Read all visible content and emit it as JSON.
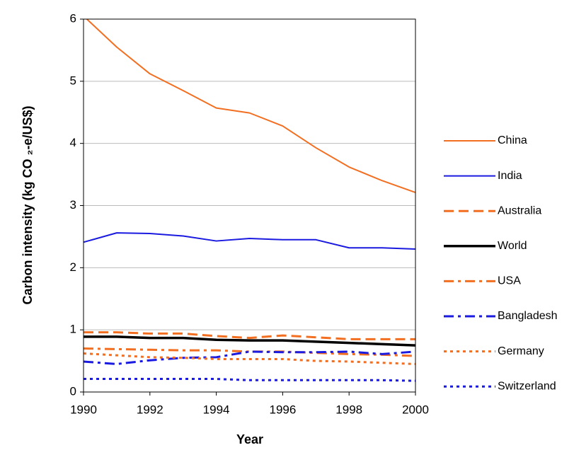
{
  "chart_data": {
    "type": "line",
    "xlabel": "Year",
    "ylabel": "Carbon intensity (kg CO ₂-e/US$)",
    "x": [
      1990,
      1991,
      1992,
      1993,
      1994,
      1995,
      1996,
      1997,
      1998,
      1999,
      2000
    ],
    "xlim": [
      1990,
      2000
    ],
    "xticks": [
      1990,
      1992,
      1994,
      1996,
      1998,
      2000
    ],
    "ylim": [
      0,
      6
    ],
    "yticks": [
      0,
      1,
      2,
      3,
      4,
      5,
      6
    ],
    "grid": true,
    "legend": "right",
    "series": [
      {
        "name": "China",
        "color": "#f26f21",
        "dash": "solid",
        "width": 2,
        "values": [
          6.05,
          5.55,
          5.12,
          4.85,
          4.57,
          4.49,
          4.28,
          3.93,
          3.62,
          3.4,
          3.21
        ]
      },
      {
        "name": "India",
        "color": "#1a1ae0",
        "dash": "solid",
        "width": 2,
        "values": [
          2.41,
          2.56,
          2.55,
          2.51,
          2.43,
          2.47,
          2.45,
          2.45,
          2.32,
          2.32,
          2.3
        ]
      },
      {
        "name": "Australia",
        "color": "#f26f21",
        "dash": "dash",
        "width": 3,
        "values": [
          0.96,
          0.96,
          0.94,
          0.94,
          0.9,
          0.87,
          0.91,
          0.88,
          0.85,
          0.85,
          0.85
        ]
      },
      {
        "name": "World",
        "color": "#000000",
        "dash": "solid",
        "width": 3.5,
        "values": [
          0.89,
          0.89,
          0.87,
          0.87,
          0.84,
          0.83,
          0.83,
          0.81,
          0.79,
          0.77,
          0.75
        ]
      },
      {
        "name": "USA",
        "color": "#f26f21",
        "dash": "dashdot",
        "width": 3,
        "values": [
          0.7,
          0.69,
          0.68,
          0.67,
          0.67,
          0.65,
          0.65,
          0.63,
          0.61,
          0.6,
          0.58
        ]
      },
      {
        "name": "Bangladesh",
        "color": "#1a1ae0",
        "dash": "dashdot",
        "width": 3,
        "values": [
          0.49,
          0.45,
          0.51,
          0.55,
          0.56,
          0.65,
          0.64,
          0.64,
          0.65,
          0.61,
          0.65
        ]
      },
      {
        "name": "Germany",
        "color": "#f26f21",
        "dash": "dot",
        "width": 3,
        "values": [
          0.62,
          0.59,
          0.56,
          0.55,
          0.53,
          0.53,
          0.53,
          0.5,
          0.49,
          0.47,
          0.45
        ]
      },
      {
        "name": "Switzerland",
        "color": "#1a1ae0",
        "dash": "dot",
        "width": 3,
        "values": [
          0.21,
          0.21,
          0.21,
          0.21,
          0.21,
          0.19,
          0.19,
          0.19,
          0.19,
          0.19,
          0.18
        ]
      }
    ]
  }
}
